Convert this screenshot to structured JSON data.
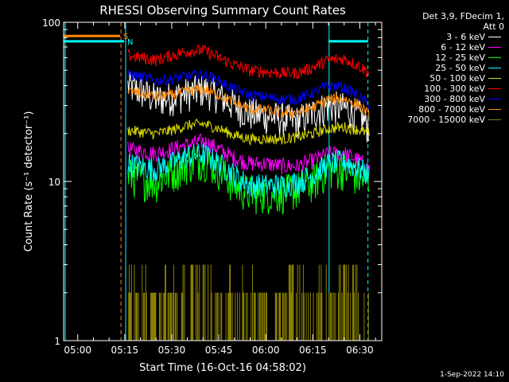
{
  "chart_data": {
    "type": "line",
    "title": "RHESSI Observing Summary Count Rates",
    "xlabel": "Start Time (16-Oct-16 04:58:02)",
    "ylabel": "Count Rate (s⁻¹ detector⁻¹)",
    "yscale": "log",
    "ylim": [
      1,
      100
    ],
    "xlim_minutes": [
      295.5,
      397
    ],
    "x_tick_labels": [
      "05:00",
      "05:15",
      "05:30",
      "05:45",
      "06:00",
      "06:15",
      "06:30"
    ],
    "x_ticks_minutes": [
      300,
      315,
      330,
      345,
      360,
      375,
      390
    ],
    "y_tick_labels": [
      "1",
      "10",
      "100"
    ],
    "y_ticks": [
      1,
      10,
      100
    ],
    "legend_header": [
      "Det 3,9, FDecim 1,",
      "Att 0"
    ],
    "flag_labels": [
      "S",
      "N"
    ],
    "series": [
      {
        "name": "3 - 6 keV",
        "color": "#ffffff",
        "x": [
          316,
          320,
          325,
          330,
          335,
          340,
          345,
          350,
          355,
          360,
          365,
          370,
          375,
          380,
          385,
          390,
          393
        ],
        "y": [
          40,
          37,
          33,
          34,
          36,
          38,
          35,
          30,
          27,
          26,
          25,
          24,
          27,
          30,
          29,
          26,
          22
        ]
      },
      {
        "name": "6 - 12 keV",
        "color": "#ff00ff",
        "x": [
          316,
          320,
          325,
          330,
          335,
          340,
          345,
          350,
          355,
          360,
          365,
          370,
          375,
          380,
          385,
          390,
          393
        ],
        "y": [
          16,
          15.5,
          15,
          16,
          17,
          18,
          16,
          14,
          13,
          13,
          12.5,
          12.5,
          13.5,
          15,
          15,
          13.5,
          12
        ]
      },
      {
        "name": "12 - 25 keV",
        "color": "#00ff00",
        "x": [
          316,
          320,
          325,
          330,
          335,
          340,
          345,
          350,
          355,
          360,
          365,
          370,
          375,
          380,
          385,
          390,
          393
        ],
        "y": [
          11,
          10.5,
          10,
          11.5,
          13,
          14,
          12,
          9.5,
          8.5,
          8.5,
          8.5,
          9,
          10,
          12,
          12,
          10.5,
          10
        ]
      },
      {
        "name": "25 - 50 keV",
        "color": "#00ffff",
        "x": [
          316,
          320,
          325,
          330,
          335,
          340,
          345,
          350,
          355,
          360,
          365,
          370,
          375,
          380,
          385,
          390,
          393
        ],
        "y": [
          13,
          12.5,
          12,
          13,
          14.5,
          15,
          13,
          11,
          9.5,
          9.5,
          9.5,
          10,
          11,
          13,
          13.5,
          12,
          11
        ]
      },
      {
        "name": "50 - 100 keV",
        "color": "#dddd00",
        "x": [
          316,
          320,
          325,
          330,
          335,
          340,
          345,
          350,
          355,
          360,
          365,
          370,
          375,
          380,
          385,
          390,
          393
        ],
        "y": [
          21,
          20.5,
          20,
          21,
          22.5,
          23,
          21.5,
          19.5,
          18.5,
          18.5,
          18.5,
          19,
          20,
          21.5,
          22,
          21,
          20
        ]
      },
      {
        "name": "100 - 300 keV",
        "color": "#ff0000",
        "x": [
          316,
          320,
          325,
          330,
          335,
          340,
          345,
          350,
          355,
          360,
          365,
          370,
          375,
          380,
          385,
          390,
          393
        ],
        "y": [
          62,
          60,
          58,
          62,
          66,
          67,
          60,
          54,
          50,
          49,
          48,
          48,
          52,
          58,
          59,
          53,
          48
        ]
      },
      {
        "name": "300 - 800 keV",
        "color": "#0000ff",
        "x": [
          316,
          320,
          325,
          330,
          335,
          340,
          345,
          350,
          355,
          360,
          365,
          370,
          375,
          380,
          385,
          390,
          393
        ],
        "y": [
          47,
          46,
          43,
          44,
          46,
          47,
          43,
          38,
          35,
          34,
          33,
          33,
          36,
          40,
          39,
          34,
          30
        ]
      },
      {
        "name": "800 - 7000 keV",
        "color": "#ff8800",
        "x": [
          316,
          320,
          325,
          330,
          335,
          340,
          345,
          350,
          355,
          360,
          365,
          370,
          375,
          380,
          385,
          390,
          393
        ],
        "y": [
          37,
          36,
          34,
          35,
          37,
          38,
          35,
          31,
          28.5,
          28,
          27,
          27,
          29,
          33,
          33,
          30,
          26
        ]
      },
      {
        "name": "7000 - 15000 keV",
        "color": "#8a8000",
        "style": "spikes",
        "x": [
          316,
          320,
          325,
          330,
          335,
          340,
          345,
          350,
          355,
          360,
          365,
          370,
          375,
          380,
          385,
          390,
          393
        ],
        "y": [
          2,
          2,
          2,
          2.5,
          3,
          3,
          2.5,
          2,
          2,
          2,
          2,
          2,
          2,
          2.5,
          3,
          2.5,
          2
        ]
      }
    ],
    "attenuator_segments": [
      {
        "series": "S",
        "color": "#ff8800",
        "x_start": 295.5,
        "x_end": 313.5,
        "y": 82
      },
      {
        "series": "N",
        "color": "#00ffff",
        "x_start": 295.5,
        "x_end": 314.8,
        "y": 76
      },
      {
        "series": "N",
        "color": "#00ffff",
        "x_start": 380,
        "x_end": 392.6,
        "y": 76
      }
    ],
    "vertical_markers": [
      {
        "x": 313.8,
        "color": "#ff8800",
        "dashed": true
      },
      {
        "x": 315.3,
        "color": "#00ffff",
        "dashed": false
      },
      {
        "x": 380.2,
        "color": "#00ffff",
        "dashed": false
      },
      {
        "x": 392.6,
        "color": "#00ffff",
        "dashed": true
      },
      {
        "x": 296,
        "color": "#00ffff",
        "dashed": false
      }
    ]
  },
  "footer_stamp": "1-Sep-2022 14:10"
}
